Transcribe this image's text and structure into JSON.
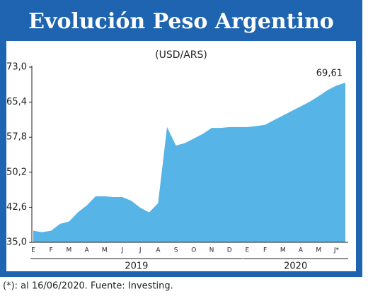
{
  "chart_data": {
    "type": "area",
    "title": "Evolución Peso Argentino",
    "subtitle": "(USD/ARS)",
    "categories": [
      "E",
      null,
      "F",
      null,
      "M",
      null,
      "A",
      null,
      "M",
      null,
      "J",
      null,
      "J",
      null,
      "A",
      null,
      "S",
      null,
      "O",
      null,
      "N",
      null,
      "D",
      null,
      "E",
      null,
      "F",
      null,
      "M",
      null,
      "A",
      null,
      "M",
      null,
      "J*",
      null
    ],
    "values": [
      37.5,
      37.2,
      37.5,
      39,
      39.5,
      41.5,
      43,
      45,
      45,
      44.8,
      44.8,
      44,
      42.5,
      41.5,
      43.5,
      60,
      56,
      56.5,
      57.5,
      58.5,
      59.8,
      59.8,
      60,
      60,
      60,
      60.2,
      60.5,
      61.5,
      62.5,
      63.5,
      64.5,
      65.5,
      66.7,
      68,
      69,
      69.61
    ],
    "value_labels": [
      null,
      null,
      null,
      null,
      null,
      null,
      null,
      null,
      null,
      null,
      null,
      null,
      null,
      null,
      null,
      null,
      null,
      null,
      null,
      null,
      null,
      null,
      null,
      null,
      null,
      null,
      null,
      null,
      null,
      null,
      null,
      null,
      null,
      null,
      null,
      "69,61"
    ],
    "color": "#56b4e6",
    "ylim": [
      35,
      73
    ],
    "yticks": [
      {
        "value": 35,
        "label": "35,0"
      },
      {
        "value": 42.6,
        "label": "42,6"
      },
      {
        "value": 50.2,
        "label": "50,2"
      },
      {
        "value": 57.8,
        "label": "57,8"
      },
      {
        "value": 65.4,
        "label": "65,4"
      },
      {
        "value": 73,
        "label": "73,0"
      }
    ],
    "year_labels": [
      "2019",
      "2020"
    ],
    "note": "(*): al 16/06/2020. Fuente: Investing."
  }
}
